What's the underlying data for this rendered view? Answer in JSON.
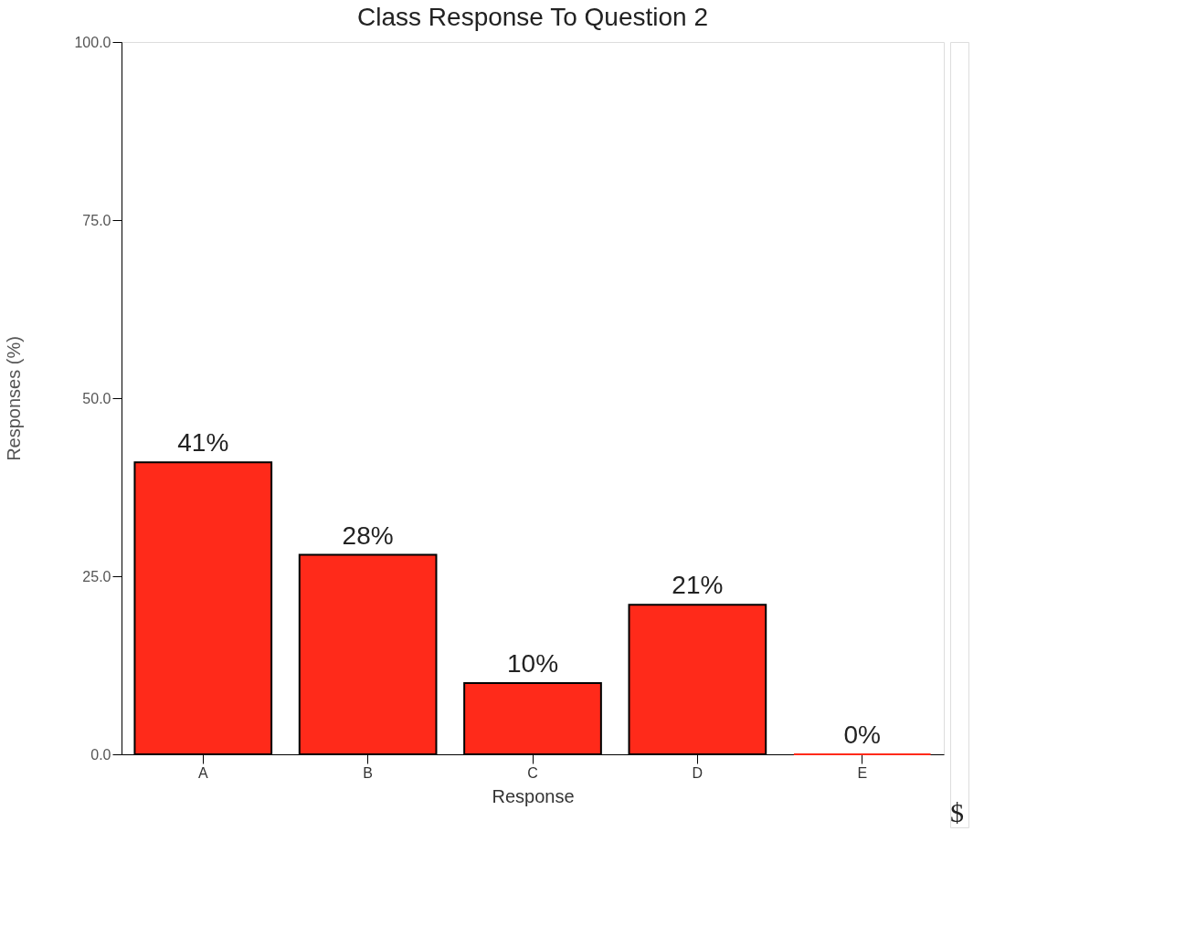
{
  "chart_data": {
    "type": "bar",
    "title": "Class Response To Question 2",
    "xlabel": "Response",
    "ylabel": "Responses (%)",
    "categories": [
      "A",
      "B",
      "C",
      "D",
      "E"
    ],
    "values": [
      41,
      28,
      10,
      21,
      0
    ],
    "value_labels": [
      "41%",
      "28%",
      "10%",
      "21%",
      "0%"
    ],
    "color": "#ff2a1a",
    "ylim": [
      0,
      100
    ],
    "yticks": [
      {
        "value": 0,
        "label": "0.0"
      },
      {
        "value": 25,
        "label": "25.0"
      },
      {
        "value": 50,
        "label": "50.0"
      },
      {
        "value": 75,
        "label": "75.0"
      },
      {
        "value": 100,
        "label": "100.0"
      }
    ],
    "grid": false,
    "annotations": [
      "$"
    ]
  }
}
